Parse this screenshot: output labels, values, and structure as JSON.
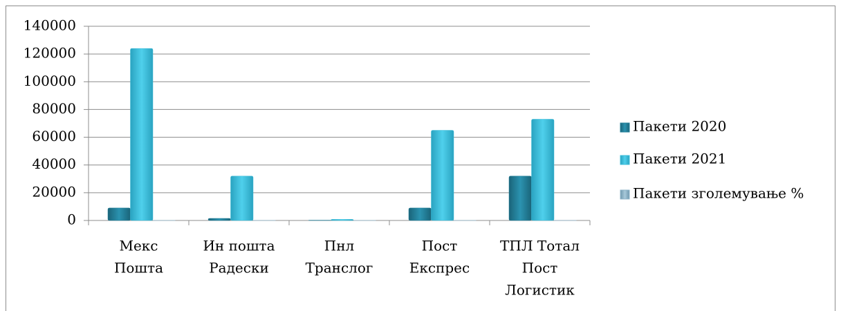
{
  "chart_data": {
    "type": "bar",
    "categories": [
      [
        "Мекс",
        "Пошта"
      ],
      [
        "Ин пошта",
        "Радески"
      ],
      [
        "Пнл",
        "Транслог"
      ],
      [
        "Пост",
        "Експрес"
      ],
      [
        "ТПЛ Тотал",
        "Пост",
        "Логистик"
      ]
    ],
    "series": [
      {
        "name": "Пакети 2020",
        "color": "#237f99",
        "values": [
          9000,
          1500,
          200,
          9000,
          32000
        ]
      },
      {
        "name": "Пакети 2021",
        "color": "#3cbcd9",
        "values": [
          124000,
          32000,
          800,
          65000,
          73000
        ]
      },
      {
        "name": "Пакети зголемување %",
        "color": "#8fb4c9",
        "values": [
          13.8,
          21.3,
          4,
          7.2,
          2.3
        ]
      }
    ],
    "ylim": [
      0,
      140000
    ],
    "yticks": [
      0,
      20000,
      40000,
      60000,
      80000,
      100000,
      120000,
      140000
    ],
    "grid": true,
    "legend": "right"
  }
}
